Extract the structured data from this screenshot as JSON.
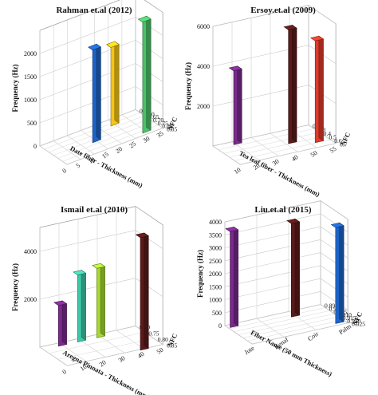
{
  "chart_data": [
    {
      "type": "bar",
      "title": "Rahman et.al (2012)",
      "zlabel": "Frequency (Hz)",
      "xlabel": "Date fiber - Thickness (mm)",
      "ylabel": "NFC",
      "x_ticks": [
        "0",
        "5",
        "10",
        "15",
        "20",
        "25",
        "30",
        "35"
      ],
      "y_ticks": [
        "0.55",
        "0.60",
        "0.65",
        "0.70",
        "0.75",
        "0.80",
        "0.85"
      ],
      "z_ticks": [
        "0",
        "500",
        "1000",
        "1500",
        "2000"
      ],
      "zlim": [
        0,
        2500
      ],
      "bars": [
        {
          "x": 15,
          "y": 0.7,
          "value": 2000,
          "color": "#1e64c8"
        },
        {
          "x": 25,
          "y": 0.6,
          "value": 1700,
          "color": "#f5c518"
        },
        {
          "x": 30,
          "y": 0.8,
          "value": 2400,
          "color": "#4cc06a"
        }
      ]
    },
    {
      "type": "bar",
      "title": "Ersoy.et.al (2009)",
      "zlabel": "Frequency (Hz)",
      "xlabel": "Tea leaf fiber - Thickness (mm)",
      "ylabel": "NFC",
      "x_ticks": [
        "10",
        "20",
        "30",
        "40",
        "50",
        "55"
      ],
      "y_ticks": [
        "0.2",
        "0.3",
        "0.4",
        "0.5",
        "0.6",
        "0.7"
      ],
      "z_ticks": [
        "2000",
        "4000",
        "6000"
      ],
      "zlim": [
        0,
        6000
      ],
      "bars": [
        {
          "x": 20,
          "y": 0.2,
          "value": 3700,
          "color": "#7a2a8c"
        },
        {
          "x": 40,
          "y": 0.45,
          "value": 5700,
          "color": "#5a1a1a"
        },
        {
          "x": 50,
          "y": 0.55,
          "value": 5100,
          "color": "#e03a2a"
        }
      ]
    },
    {
      "type": "bar",
      "title": "Ismail et.al (2010)",
      "zlabel": "Frequency (Hz)",
      "xlabel": "Aregna Pinnata - Thickness (mm)",
      "ylabel": "NFC",
      "x_ticks": [
        "0",
        "10",
        "20",
        "30",
        "40",
        "50"
      ],
      "y_ticks": [
        "0.70",
        "0.75",
        "0.80",
        "0.85"
      ],
      "z_ticks": [
        "2000",
        "4000"
      ],
      "zlim": [
        0,
        5000
      ],
      "bars": [
        {
          "x": 10,
          "y": 0.7,
          "value": 1700,
          "color": "#7a2a8c"
        },
        {
          "x": 20,
          "y": 0.7,
          "value": 2800,
          "color": "#3fc8a8"
        },
        {
          "x": 30,
          "y": 0.7,
          "value": 2900,
          "color": "#a8d832"
        },
        {
          "x": 40,
          "y": 0.85,
          "value": 4700,
          "color": "#5a1a1a"
        }
      ]
    },
    {
      "type": "bar",
      "title": "Liu.et.al (2015)",
      "zlabel": "Frequency (Hz)",
      "xlabel": "Fiber Name (50 mm Thickness)",
      "ylabel": "NFC",
      "x_ticks": [
        "Jute",
        "Kenaf",
        "Coir",
        "Palm"
      ],
      "y_ticks": [
        "0.895",
        "0.900",
        "0.905",
        "0.910",
        "0.915",
        "0.920",
        "0.925"
      ],
      "z_ticks": [
        "0",
        "500",
        "1000",
        "1500",
        "2000",
        "2500",
        "3000",
        "3500",
        "4000"
      ],
      "zlim": [
        0,
        4000
      ],
      "bars": [
        {
          "x": "Jute",
          "y": 0.895,
          "value": 3700,
          "color": "#7a2a8c"
        },
        {
          "x": "Coir",
          "y": 0.9,
          "value": 3600,
          "color": "#5a1a1a"
        },
        {
          "x": "Palm",
          "y": 0.92,
          "value": 3700,
          "color": "#1e64c8"
        }
      ]
    }
  ]
}
